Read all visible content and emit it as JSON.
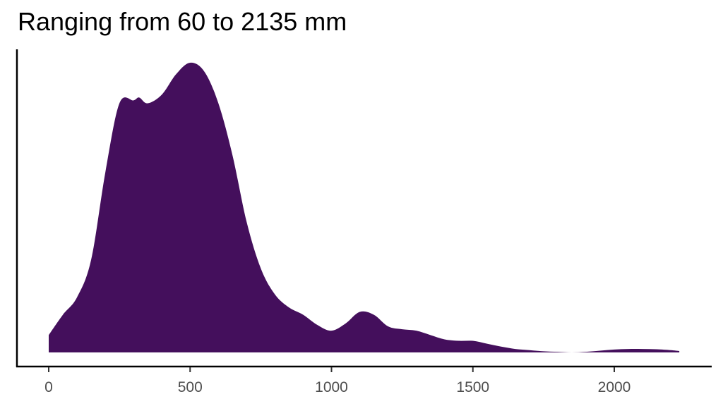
{
  "chart_data": {
    "type": "area",
    "subtype": "density",
    "title": "Ranging from 60 to 2135 mm",
    "xlabel": "",
    "ylabel": "",
    "xlim": [
      0,
      2230
    ],
    "x_ticks": [
      0,
      500,
      1000,
      1500,
      2000
    ],
    "x_tick_labels": [
      "0",
      "500",
      "1000",
      "1500",
      "2000"
    ],
    "y_ticks": [],
    "grid": false,
    "legend": null,
    "fill_color": "#440f5c",
    "x": [
      0,
      50,
      100,
      150,
      200,
      250,
      300,
      320,
      350,
      400,
      450,
      500,
      550,
      600,
      650,
      700,
      750,
      800,
      850,
      900,
      950,
      1000,
      1050,
      1100,
      1150,
      1200,
      1250,
      1300,
      1350,
      1400,
      1450,
      1500,
      1550,
      1600,
      1650,
      1700,
      1750,
      1800,
      1850,
      1900,
      1950,
      2000,
      2050,
      2100,
      2150,
      2200,
      2230
    ],
    "density_relative": [
      0.06,
      0.13,
      0.19,
      0.32,
      0.62,
      0.86,
      0.87,
      0.88,
      0.86,
      0.89,
      0.96,
      1.0,
      0.97,
      0.86,
      0.68,
      0.45,
      0.29,
      0.2,
      0.155,
      0.13,
      0.095,
      0.075,
      0.1,
      0.14,
      0.13,
      0.09,
      0.08,
      0.075,
      0.06,
      0.045,
      0.04,
      0.04,
      0.03,
      0.02,
      0.012,
      0.008,
      0.004,
      0.002,
      0.0,
      0.002,
      0.006,
      0.01,
      0.012,
      0.012,
      0.011,
      0.008,
      0.005
    ]
  }
}
